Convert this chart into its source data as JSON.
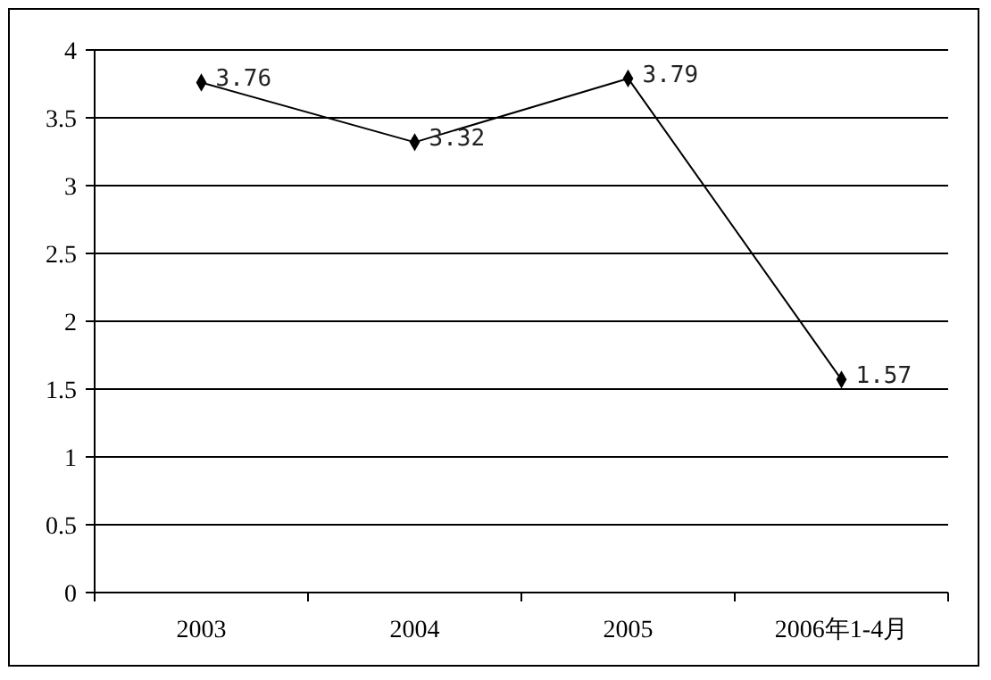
{
  "chart_data": {
    "type": "line",
    "categories": [
      "2003",
      "2004",
      "2005",
      "2006年1-4月"
    ],
    "series": [
      {
        "color": "#000000",
        "values": [
          3.76,
          3.32,
          3.79,
          1.57
        ]
      }
    ],
    "ylim": [
      0,
      4
    ],
    "yticks": [
      0,
      0.5,
      1,
      1.5,
      2,
      2.5,
      3,
      3.5,
      4
    ],
    "grid": "y",
    "marker": "diamond",
    "data_labels": true
  }
}
